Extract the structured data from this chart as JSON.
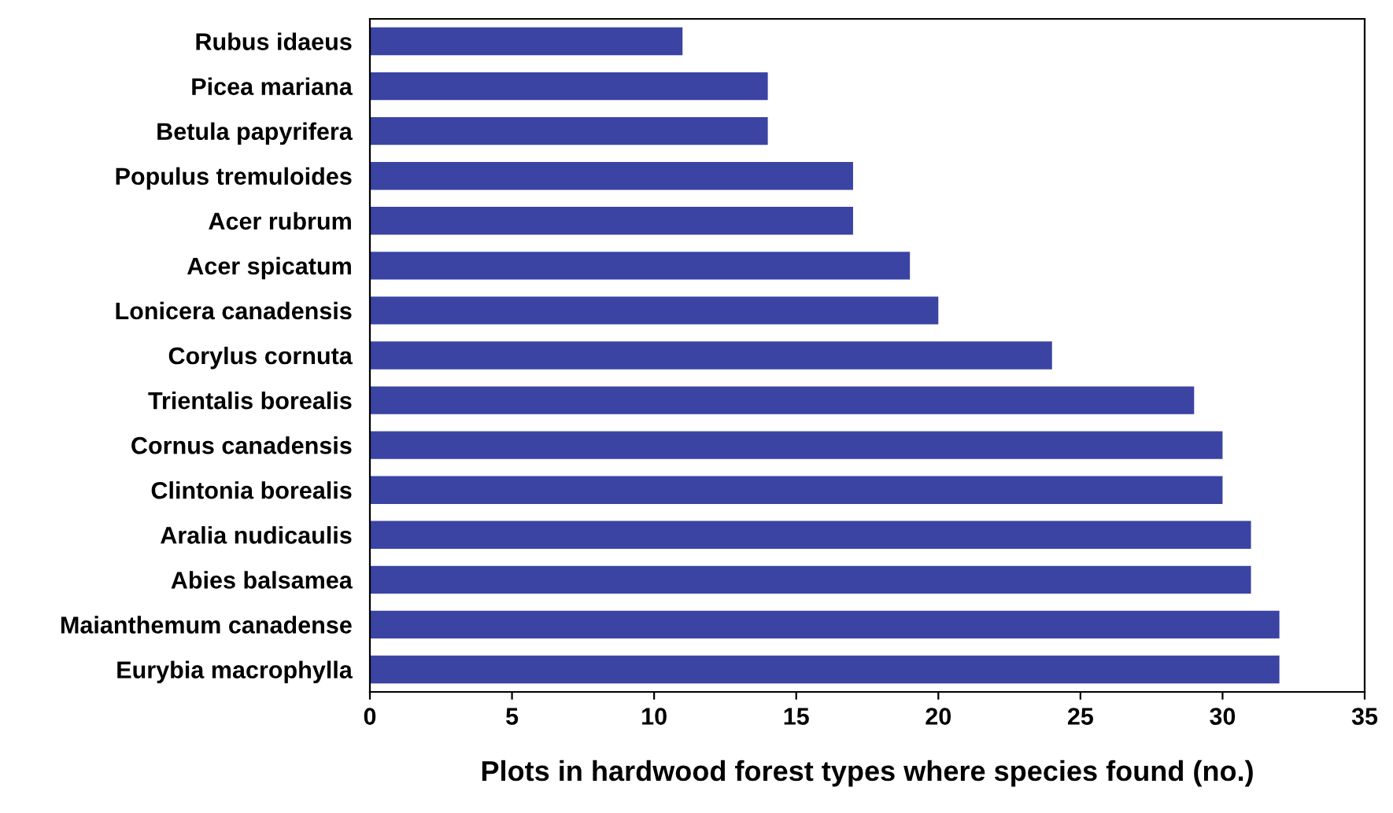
{
  "chart_data": {
    "type": "bar",
    "orientation": "horizontal",
    "xlabel": "Plots in hardwood forest types where species found (no.)",
    "categories": [
      "Rubus idaeus",
      "Picea mariana",
      "Betula papyrifera",
      "Populus tremuloides",
      "Acer rubrum",
      "Acer spicatum",
      "Lonicera canadensis",
      "Corylus cornuta",
      "Trientalis borealis",
      "Cornus canadensis",
      "Clintonia borealis",
      "Aralia nudicaulis",
      "Abies balsamea",
      "Maianthemum canadense",
      "Eurybia macrophylla"
    ],
    "values": [
      11,
      14,
      14,
      17,
      17,
      19,
      20,
      24,
      29,
      30,
      30,
      31,
      31,
      32,
      32
    ],
    "color": "#3b44a3",
    "xlim": [
      0,
      35
    ],
    "xticks": [
      0,
      5,
      10,
      15,
      20,
      25,
      30,
      35
    ],
    "grid": false,
    "legend": false
  }
}
